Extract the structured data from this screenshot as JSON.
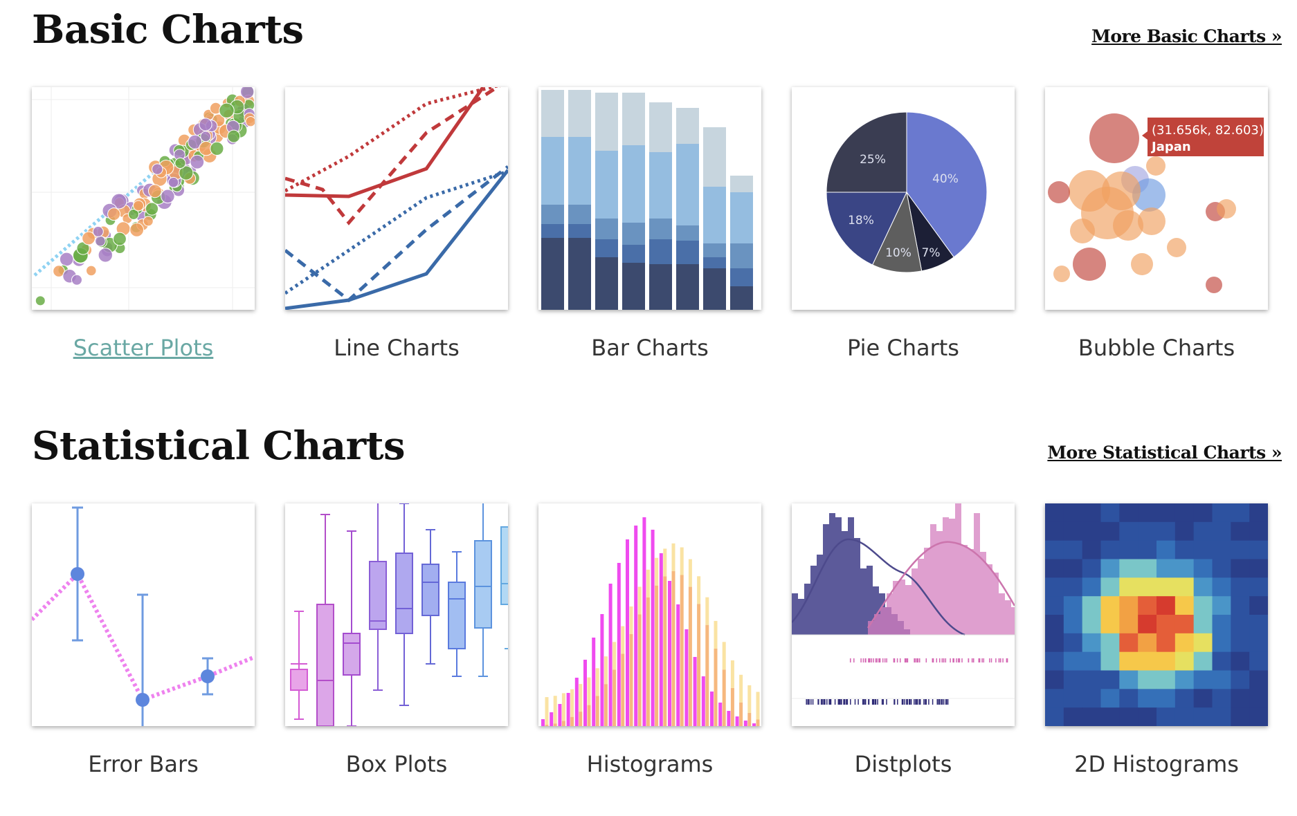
{
  "sections": [
    {
      "title": "Basic Charts",
      "more_link": "More Basic Charts »",
      "cards": [
        {
          "label": "Scatter Plots",
          "icon": "scatter-plot-thumbnail"
        },
        {
          "label": "Line Charts",
          "icon": "line-chart-thumbnail"
        },
        {
          "label": "Bar Charts",
          "icon": "bar-chart-thumbnail"
        },
        {
          "label": "Pie Charts",
          "icon": "pie-chart-thumbnail"
        },
        {
          "label": "Bubble Charts",
          "icon": "bubble-chart-thumbnail"
        }
      ]
    },
    {
      "title": "Statistical Charts",
      "more_link": "More Statistical Charts »",
      "cards": [
        {
          "label": "Error Bars",
          "icon": "error-bars-thumbnail"
        },
        {
          "label": "Box Plots",
          "icon": "box-plot-thumbnail"
        },
        {
          "label": "Histograms",
          "icon": "histogram-thumbnail"
        },
        {
          "label": "Distplots",
          "icon": "distplot-thumbnail"
        },
        {
          "label": "2D Histograms",
          "icon": "2d-histogram-thumbnail"
        }
      ]
    }
  ],
  "thumbnails": {
    "pie": {
      "slices": [
        "40%",
        "7%",
        "10%",
        "18%",
        "25%"
      ]
    },
    "bubble": {
      "tooltip_line1": "(31.656k, 82.603)",
      "tooltip_line2": "Japan"
    }
  },
  "colors": {
    "active_link": "#6aa8a4",
    "heading": "#111111",
    "label": "#333333"
  }
}
